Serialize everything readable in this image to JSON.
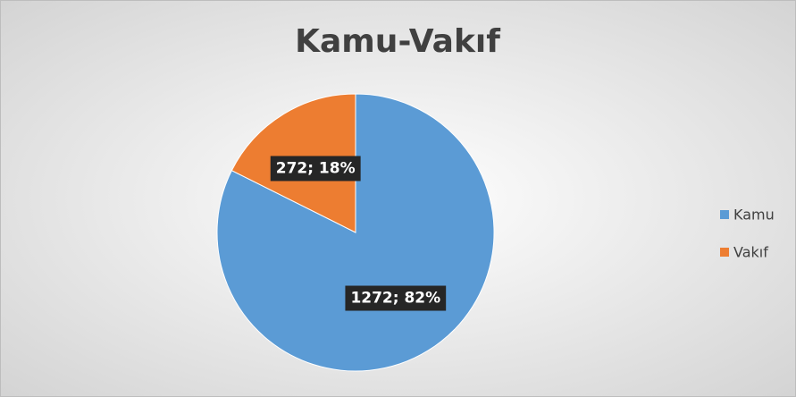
{
  "chart_data": {
    "type": "pie",
    "title": "Kamu-Vakıf",
    "categories": [
      "Kamu",
      "Vakıf"
    ],
    "values": [
      1272,
      272
    ],
    "value_labels": [
      "1272; 82%",
      "272; 18%"
    ],
    "colors": [
      "#5b9bd5",
      "#ed7d31"
    ],
    "legend": "right"
  }
}
